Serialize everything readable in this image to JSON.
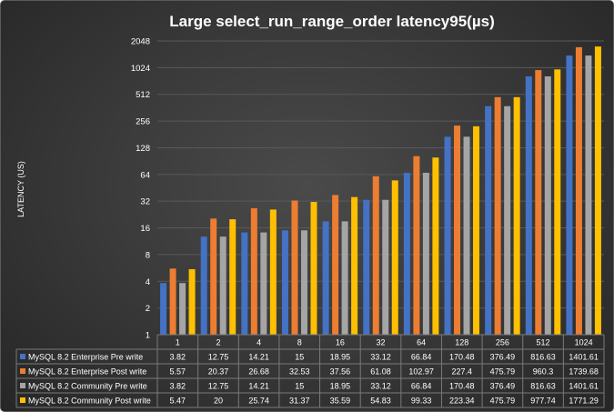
{
  "chart_data": {
    "type": "bar",
    "title": "Large select_run_range_order   latency95(µs)",
    "ylabel": "LATENCY (US)",
    "xlabel": "",
    "y_scale": "log2",
    "ylim": [
      1,
      2048
    ],
    "yticks": [
      "1",
      "2",
      "4",
      "8",
      "16",
      "32",
      "64",
      "128",
      "256",
      "512",
      "1024",
      "2048"
    ],
    "grid": true,
    "legend_placement": "data-table-left",
    "categories": [
      "1",
      "2",
      "4",
      "8",
      "16",
      "32",
      "64",
      "128",
      "256",
      "512",
      "1024"
    ],
    "series": [
      {
        "name": "MySQL 8.2 Enterprise Pre write",
        "color": "#4472c4",
        "values": [
          3.82,
          12.75,
          14.21,
          15,
          18.95,
          33.12,
          66.84,
          170.48,
          376.49,
          816.63,
          1401.61
        ],
        "labels": [
          "3.82",
          "12.75",
          "14.21",
          "15",
          "18.95",
          "33.12",
          "66.84",
          "170.48",
          "376.49",
          "816.63",
          "1401.61"
        ]
      },
      {
        "name": "MySQL 8.2 Enterprise Post write",
        "color": "#ed7d31",
        "values": [
          5.57,
          20.37,
          26.68,
          32.53,
          37.56,
          61.08,
          102.97,
          227.4,
          475.79,
          960.3,
          1739.68
        ],
        "labels": [
          "5.57",
          "20.37",
          "26.68",
          "32.53",
          "37.56",
          "61.08",
          "102.97",
          "227.4",
          "475.79",
          "960.3",
          "1739.68"
        ]
      },
      {
        "name": "MySQL 8.2 Community Pre write",
        "color": "#a5a5a5",
        "values": [
          3.82,
          12.75,
          14.21,
          15,
          18.95,
          33.12,
          66.84,
          170.48,
          376.49,
          816.63,
          1401.61
        ],
        "labels": [
          "3.82",
          "12.75",
          "14.21",
          "15",
          "18.95",
          "33.12",
          "66.84",
          "170.48",
          "376.49",
          "816.63",
          "1401.61"
        ]
      },
      {
        "name": "MySQL 8.2 Community Post write",
        "color": "#ffc000",
        "values": [
          5.47,
          20,
          25.74,
          31.37,
          35.59,
          54.83,
          99.33,
          223.34,
          475.79,
          977.74,
          1771.29
        ],
        "labels": [
          "5.47",
          "20",
          "25.74",
          "31.37",
          "35.59",
          "54.83",
          "99.33",
          "223.34",
          "475.79",
          "977.74",
          "1771.29"
        ]
      }
    ]
  }
}
